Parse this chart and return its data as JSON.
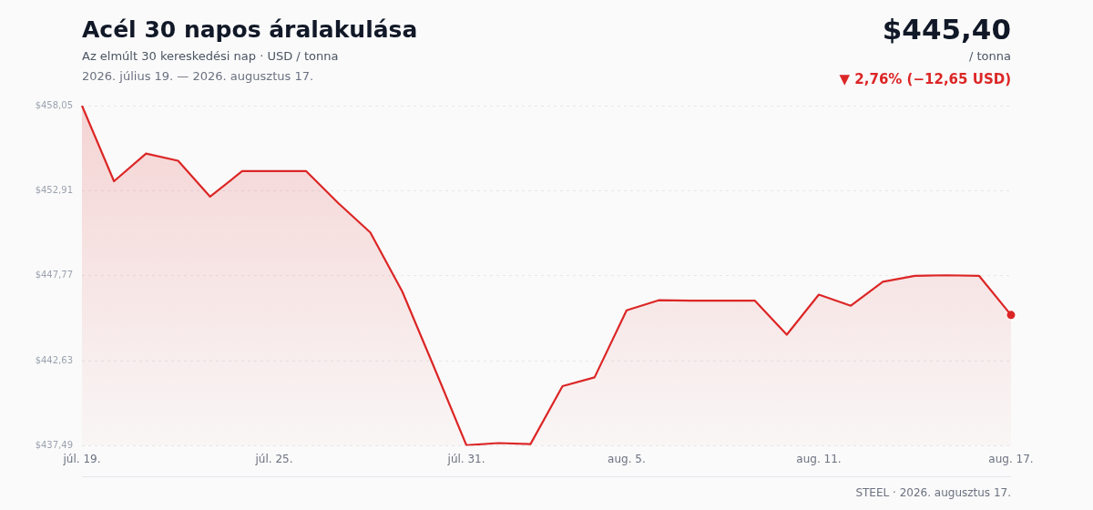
{
  "chart_data": {
    "type": "area",
    "title": "Acél 30 napos áralakulása",
    "subtitle": "Az elmúlt 30 kereskedési nap · USD / tonna",
    "annotations": [
      "2026. július 19. — 2026. augusztus 17.",
      "$445,40",
      "/ tonna",
      "▼ 2,76% (−12,65 USD)",
      "STEEL · 2026. augusztus 17."
    ],
    "categories": [
      "júl. 19.",
      null,
      null,
      null,
      null,
      null,
      "júl. 25.",
      null,
      null,
      null,
      null,
      null,
      "júl. 31.",
      null,
      null,
      null,
      null,
      "aug. 5.",
      null,
      null,
      null,
      null,
      null,
      "aug. 11.",
      null,
      null,
      null,
      null,
      null,
      "aug. 17."
    ],
    "series": [
      {
        "color": "#dc2626",
        "values": [
          458.05,
          453.48,
          455.15,
          454.72,
          452.55,
          454.09,
          454.09,
          454.09,
          452.16,
          450.39,
          446.81,
          442.2,
          437.53,
          437.66,
          437.6,
          441.1,
          441.63,
          445.68,
          446.29,
          446.27,
          446.27,
          446.27,
          444.21,
          446.63,
          445.96,
          447.41,
          447.77,
          447.8,
          447.77,
          445.4
        ]
      },
      {
        "type": "scatter",
        "marker": "circle",
        "color": "#dc2626",
        "values": [
          null,
          null,
          null,
          null,
          null,
          null,
          null,
          null,
          null,
          null,
          null,
          null,
          null,
          null,
          null,
          null,
          null,
          null,
          null,
          null,
          null,
          null,
          null,
          null,
          null,
          null,
          null,
          null,
          null,
          445.4
        ]
      }
    ],
    "ylim": [
      437.49,
      458.05
    ],
    "yticks": [
      {
        "value": 437.49,
        "label": "$437,49"
      },
      {
        "value": 442.63,
        "label": "$442,63"
      },
      {
        "value": 447.77,
        "label": "$447,77"
      },
      {
        "value": 452.91,
        "label": "$452,91"
      },
      {
        "value": 458.05,
        "label": "$458,05"
      }
    ],
    "grid": "y",
    "legend": false,
    "marker": "none",
    "line_style": "solid"
  }
}
